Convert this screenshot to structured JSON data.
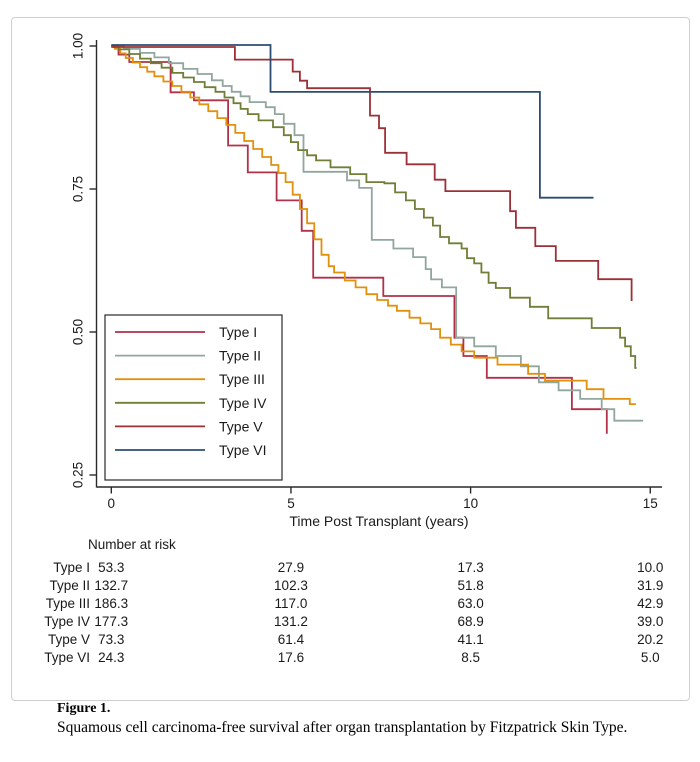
{
  "figure": {
    "caption_label": "Figure 1.",
    "caption_text": "Squamous cell carcinoma-free survival after organ transplantation by Fitzpatrick Skin Type."
  },
  "chart_data": {
    "type": "line",
    "subtype": "kaplan-meier-step-survival",
    "title": "",
    "xlabel": "Time Post Transplant (years)",
    "ylabel": "",
    "x_ticks": [
      0,
      5,
      10,
      15
    ],
    "y_ticks": [
      1.0,
      0.75,
      0.5,
      0.25
    ],
    "y_tick_labels": [
      "1.00",
      "0.75",
      "0.50",
      "0.25"
    ],
    "xlim": [
      0,
      15.3
    ],
    "ylim": [
      0.22,
      1.02
    ],
    "grid": false,
    "legend_position": "lower-left-inside",
    "axis_color": "#2a2a2a",
    "series": [
      {
        "name": "Type I",
        "color": "#b13148",
        "end": 13.79,
        "points": [
          [
            0,
            1
          ],
          [
            0.2,
            0.985
          ],
          [
            0.5,
            0.972
          ],
          [
            1.65,
            0.919
          ],
          [
            2.3,
            0.905
          ],
          [
            3.25,
            0.826
          ],
          [
            3.8,
            0.779
          ],
          [
            4.6,
            0.73
          ],
          [
            5.3,
            0.677
          ],
          [
            5.62,
            0.595
          ],
          [
            7.57,
            0.563
          ],
          [
            9.55,
            0.49
          ],
          [
            9.8,
            0.458
          ],
          [
            10.45,
            0.42
          ],
          [
            12.82,
            0.365
          ],
          [
            13.79,
            0.322
          ]
        ]
      },
      {
        "name": "Type II",
        "color": "#91a69d",
        "end": 14.8,
        "points": [
          [
            0,
            1
          ],
          [
            0.35,
            0.995
          ],
          [
            0.8,
            0.988
          ],
          [
            1.2,
            0.98
          ],
          [
            1.6,
            0.97
          ],
          [
            2.0,
            0.96
          ],
          [
            2.4,
            0.951
          ],
          [
            2.8,
            0.94
          ],
          [
            3.1,
            0.93
          ],
          [
            3.35,
            0.92
          ],
          [
            3.6,
            0.912
          ],
          [
            3.85,
            0.902
          ],
          [
            4.3,
            0.893
          ],
          [
            4.55,
            0.881
          ],
          [
            4.8,
            0.864
          ],
          [
            5.1,
            0.844
          ],
          [
            5.35,
            0.78
          ],
          [
            6.56,
            0.765
          ],
          [
            6.9,
            0.752
          ],
          [
            7.25,
            0.661
          ],
          [
            7.85,
            0.646
          ],
          [
            8.4,
            0.631
          ],
          [
            8.75,
            0.61
          ],
          [
            8.9,
            0.592
          ],
          [
            9.2,
            0.578
          ],
          [
            9.6,
            0.49
          ],
          [
            10.1,
            0.475
          ],
          [
            10.7,
            0.458
          ],
          [
            11.4,
            0.44
          ],
          [
            11.9,
            0.412
          ],
          [
            12.45,
            0.398
          ],
          [
            13.05,
            0.383
          ],
          [
            13.65,
            0.365
          ],
          [
            14.0,
            0.345
          ]
        ]
      },
      {
        "name": "Type III",
        "color": "#e1910e",
        "end": 14.6,
        "points": [
          [
            0,
            1
          ],
          [
            0.1,
            0.995
          ],
          [
            0.25,
            0.987
          ],
          [
            0.4,
            0.979
          ],
          [
            0.6,
            0.971
          ],
          [
            0.8,
            0.963
          ],
          [
            1.0,
            0.955
          ],
          [
            1.2,
            0.947
          ],
          [
            1.45,
            0.938
          ],
          [
            1.7,
            0.93
          ],
          [
            1.95,
            0.92
          ],
          [
            2.2,
            0.91
          ],
          [
            2.45,
            0.898
          ],
          [
            2.7,
            0.886
          ],
          [
            2.95,
            0.874
          ],
          [
            3.2,
            0.862
          ],
          [
            3.45,
            0.848
          ],
          [
            3.7,
            0.834
          ],
          [
            3.95,
            0.82
          ],
          [
            4.2,
            0.806
          ],
          [
            4.45,
            0.792
          ],
          [
            4.65,
            0.778
          ],
          [
            4.85,
            0.762
          ],
          [
            5.05,
            0.74
          ],
          [
            5.25,
            0.715
          ],
          [
            5.45,
            0.69
          ],
          [
            5.65,
            0.662
          ],
          [
            5.85,
            0.635
          ],
          [
            6.05,
            0.615
          ],
          [
            6.2,
            0.604
          ],
          [
            6.5,
            0.59
          ],
          [
            6.8,
            0.578
          ],
          [
            7.1,
            0.566
          ],
          [
            7.4,
            0.556
          ],
          [
            7.7,
            0.546
          ],
          [
            7.95,
            0.537
          ],
          [
            8.3,
            0.525
          ],
          [
            8.6,
            0.515
          ],
          [
            8.9,
            0.505
          ],
          [
            9.15,
            0.49
          ],
          [
            9.45,
            0.478
          ],
          [
            9.75,
            0.466
          ],
          [
            10.1,
            0.455
          ],
          [
            10.75,
            0.443
          ],
          [
            11.6,
            0.427
          ],
          [
            12.07,
            0.415
          ],
          [
            13.23,
            0.4
          ],
          [
            13.7,
            0.383
          ],
          [
            14.43,
            0.374
          ]
        ]
      },
      {
        "name": "Type IV",
        "color": "#6f7f37",
        "end": 14.62,
        "points": [
          [
            0,
            1
          ],
          [
            0.2,
            0.994
          ],
          [
            0.5,
            0.986
          ],
          [
            0.8,
            0.978
          ],
          [
            1.1,
            0.97
          ],
          [
            1.4,
            0.962
          ],
          [
            1.7,
            0.953
          ],
          [
            2.0,
            0.945
          ],
          [
            2.3,
            0.937
          ],
          [
            2.6,
            0.928
          ],
          [
            2.9,
            0.92
          ],
          [
            3.15,
            0.91
          ],
          [
            3.4,
            0.9
          ],
          [
            3.6,
            0.89
          ],
          [
            3.8,
            0.881
          ],
          [
            4.1,
            0.87
          ],
          [
            4.5,
            0.858
          ],
          [
            4.8,
            0.844
          ],
          [
            5.0,
            0.832
          ],
          [
            5.2,
            0.818
          ],
          [
            5.45,
            0.809
          ],
          [
            5.7,
            0.8
          ],
          [
            6.1,
            0.788
          ],
          [
            6.65,
            0.776
          ],
          [
            7.1,
            0.762
          ],
          [
            7.6,
            0.76
          ],
          [
            7.9,
            0.744
          ],
          [
            8.2,
            0.73
          ],
          [
            8.45,
            0.715
          ],
          [
            8.7,
            0.7
          ],
          [
            8.95,
            0.686
          ],
          [
            9.15,
            0.666
          ],
          [
            9.4,
            0.655
          ],
          [
            9.75,
            0.646
          ],
          [
            9.9,
            0.629
          ],
          [
            10.1,
            0.62
          ],
          [
            10.3,
            0.604
          ],
          [
            10.5,
            0.586
          ],
          [
            10.7,
            0.577
          ],
          [
            11.1,
            0.56
          ],
          [
            11.65,
            0.544
          ],
          [
            12.16,
            0.524
          ],
          [
            13.37,
            0.507
          ],
          [
            14.16,
            0.49
          ],
          [
            14.3,
            0.475
          ],
          [
            14.46,
            0.458
          ],
          [
            14.58,
            0.437
          ]
        ]
      },
      {
        "name": "Type V",
        "color": "#9c3037",
        "end": 14.48,
        "points": [
          [
            0,
            1
          ],
          [
            3.44,
            0.978
          ],
          [
            5.05,
            0.957
          ],
          [
            5.25,
            0.941
          ],
          [
            5.45,
            0.928
          ],
          [
            7.2,
            0.88
          ],
          [
            7.45,
            0.858
          ],
          [
            7.62,
            0.815
          ],
          [
            8.22,
            0.795
          ],
          [
            9.0,
            0.768
          ],
          [
            9.3,
            0.748
          ],
          [
            11.1,
            0.713
          ],
          [
            11.26,
            0.684
          ],
          [
            11.8,
            0.652
          ],
          [
            12.37,
            0.626
          ],
          [
            13.55,
            0.594
          ],
          [
            14.48,
            0.556
          ]
        ]
      },
      {
        "name": "Type VI",
        "color": "#2c4d71",
        "end": 13.42,
        "points": [
          [
            0,
            1
          ],
          [
            4.43,
            0.918
          ],
          [
            11.93,
            0.733
          ]
        ]
      }
    ]
  },
  "risk_table": {
    "header": "Number at risk",
    "time_points": [
      0,
      5,
      10,
      15
    ],
    "rows": [
      {
        "label": "Type I",
        "values": [
          "53.3",
          "27.9",
          "17.3",
          "10.0"
        ]
      },
      {
        "label": "Type II",
        "values": [
          "132.7",
          "102.3",
          "51.8",
          "31.9"
        ]
      },
      {
        "label": "Type III",
        "values": [
          "186.3",
          "117.0",
          "63.0",
          "42.9"
        ]
      },
      {
        "label": "Type IV",
        "values": [
          "177.3",
          "131.2",
          "68.9",
          "39.0"
        ]
      },
      {
        "label": "Type V",
        "values": [
          "73.3",
          "61.4",
          "41.1",
          "20.2"
        ]
      },
      {
        "label": "Type VI",
        "values": [
          "24.3",
          "17.6",
          "8.5",
          "5.0"
        ]
      }
    ]
  }
}
